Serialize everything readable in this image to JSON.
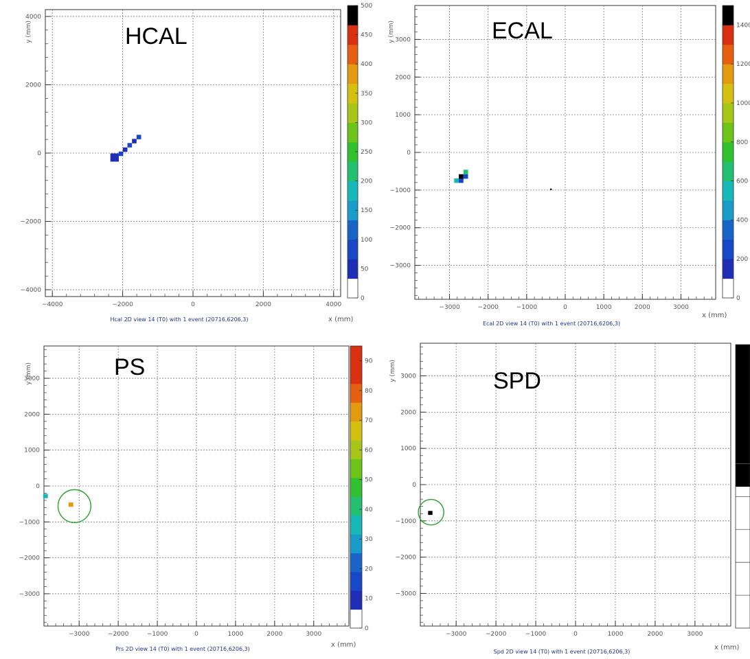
{
  "chart_data": [
    {
      "type": "heatmap",
      "title": "HCAL",
      "caption": "Hcal 2D view 14 (T0) with 1 event (20716,6206,3)",
      "xlabel": "x (mm)",
      "ylabel": "y (mm)",
      "xlim": [
        -4200,
        4200
      ],
      "ylim": [
        -4200,
        4200
      ],
      "x_ticks": [
        -4000,
        -2000,
        0,
        2000,
        4000
      ],
      "y_ticks": [
        -4000,
        -2000,
        0,
        2000,
        4000
      ],
      "grid": true,
      "zlim": [
        0,
        500
      ],
      "z_ticks": [
        0,
        50,
        100,
        150,
        200,
        250,
        300,
        350,
        400,
        450,
        500
      ],
      "colors": [
        "#ffffff",
        "#1f2fb5",
        "#1848c8",
        "#1a64c8",
        "#1a9cc8",
        "#18b8b8",
        "#22c070",
        "#30c030",
        "#6cc418",
        "#a8c618",
        "#d4c010",
        "#e39a10",
        "#e56010",
        "#d83010",
        "#000000"
      ],
      "hits": [
        {
          "x": -2230,
          "y": -130,
          "dx": 240,
          "dy": 240,
          "z": 30
        },
        {
          "x": -2050,
          "y": -20,
          "dx": 130,
          "dy": 130,
          "z": 40
        },
        {
          "x": -1930,
          "y": 100,
          "dx": 130,
          "dy": 130,
          "z": 35
        },
        {
          "x": -1800,
          "y": 230,
          "dx": 130,
          "dy": 130,
          "z": 40
        },
        {
          "x": -1670,
          "y": 350,
          "dx": 130,
          "dy": 130,
          "z": 35
        },
        {
          "x": -1540,
          "y": 470,
          "dx": 130,
          "dy": 130,
          "z": 40
        }
      ]
    },
    {
      "type": "heatmap",
      "title": "ECAL",
      "caption": "Ecal 2D view 14 (T0) with 1 event (20716,6206,3)",
      "xlabel": "x (mm)",
      "ylabel": "y (mm)",
      "xlim": [
        -3900,
        3900
      ],
      "ylim": [
        -3900,
        3900
      ],
      "x_ticks": [
        -3000,
        -2000,
        -1000,
        0,
        1000,
        2000,
        3000
      ],
      "y_ticks": [
        -3000,
        -2000,
        -1000,
        0,
        1000,
        2000,
        3000
      ],
      "grid": true,
      "zlim": [
        0,
        1500
      ],
      "z_ticks": [
        0,
        200,
        400,
        600,
        800,
        1000,
        1200,
        1400
      ],
      "colors": [
        "#ffffff",
        "#1f2fb5",
        "#1848c8",
        "#1a64c8",
        "#1a9cc8",
        "#18b8b8",
        "#22c070",
        "#30c030",
        "#6cc418",
        "#a8c618",
        "#d4c010",
        "#e39a10",
        "#e56010",
        "#d83010",
        "#000000"
      ],
      "hits": [
        {
          "x": -2820,
          "y": -750,
          "dx": 120,
          "dy": 120,
          "z": 450
        },
        {
          "x": -2700,
          "y": -750,
          "dx": 120,
          "dy": 120,
          "z": 120
        },
        {
          "x": -2700,
          "y": -640,
          "dx": 120,
          "dy": 120,
          "z": 1500
        },
        {
          "x": -2580,
          "y": -640,
          "dx": 120,
          "dy": 120,
          "z": 130
        },
        {
          "x": -2580,
          "y": -520,
          "dx": 120,
          "dy": 120,
          "z": 600
        },
        {
          "x": -370,
          "y": -980,
          "dx": 40,
          "dy": 40,
          "z": 1500
        }
      ]
    },
    {
      "type": "heatmap",
      "title": "PS",
      "caption": "Prs 2D view 14 (T0) with 1 event (20716,6206,3)",
      "xlabel": "x (mm)",
      "ylabel": "y (mm)",
      "xlim": [
        -3900,
        3900
      ],
      "ylim": [
        -3900,
        3900
      ],
      "x_ticks": [
        -3000,
        -2000,
        -1000,
        0,
        1000,
        2000,
        3000
      ],
      "y_ticks": [
        -3000,
        -2000,
        -1000,
        0,
        1000,
        2000,
        3000
      ],
      "grid": true,
      "zlim": [
        0,
        95
      ],
      "z_ticks": [
        0,
        10,
        20,
        30,
        40,
        50,
        60,
        70,
        80,
        90
      ],
      "colors": [
        "#ffffff",
        "#1f2fb5",
        "#1848c8",
        "#1a64c8",
        "#1a9cc8",
        "#18b8b8",
        "#22c070",
        "#30c030",
        "#6cc418",
        "#a8c618",
        "#d4c010",
        "#e39a10",
        "#e56010",
        "#d83010",
        "#d83010"
      ],
      "hits": [
        {
          "x": -3860,
          "y": -280,
          "dx": 120,
          "dy": 120,
          "z": 28
        },
        {
          "x": -3210,
          "y": -520,
          "dx": 120,
          "dy": 120,
          "z": 68
        }
      ],
      "circles": [
        {
          "x": -3120,
          "y": -560,
          "r": 420
        }
      ]
    },
    {
      "type": "heatmap",
      "title": "SPD",
      "caption": "Spd 2D view 14 (T0) with 1 event (20716,6206,3)",
      "xlabel": "x (mm)",
      "ylabel": "y (mm)",
      "xlim": [
        -3900,
        3900
      ],
      "ylim": [
        -3900,
        3900
      ],
      "x_ticks": [
        -3000,
        -2000,
        -1000,
        0,
        1000,
        2000,
        3000
      ],
      "y_ticks": [
        -3000,
        -2000,
        -1000,
        0,
        1000,
        2000,
        3000
      ],
      "grid": true,
      "zlim": [
        0,
        1
      ],
      "z_ticks": [],
      "colors": [
        "#ffffff",
        "#000000"
      ],
      "hits": [
        {
          "x": -3650,
          "y": -780,
          "dx": 110,
          "dy": 110,
          "z": 1
        }
      ],
      "circles": [
        {
          "x": -3630,
          "y": -760,
          "r": 320
        }
      ]
    }
  ]
}
